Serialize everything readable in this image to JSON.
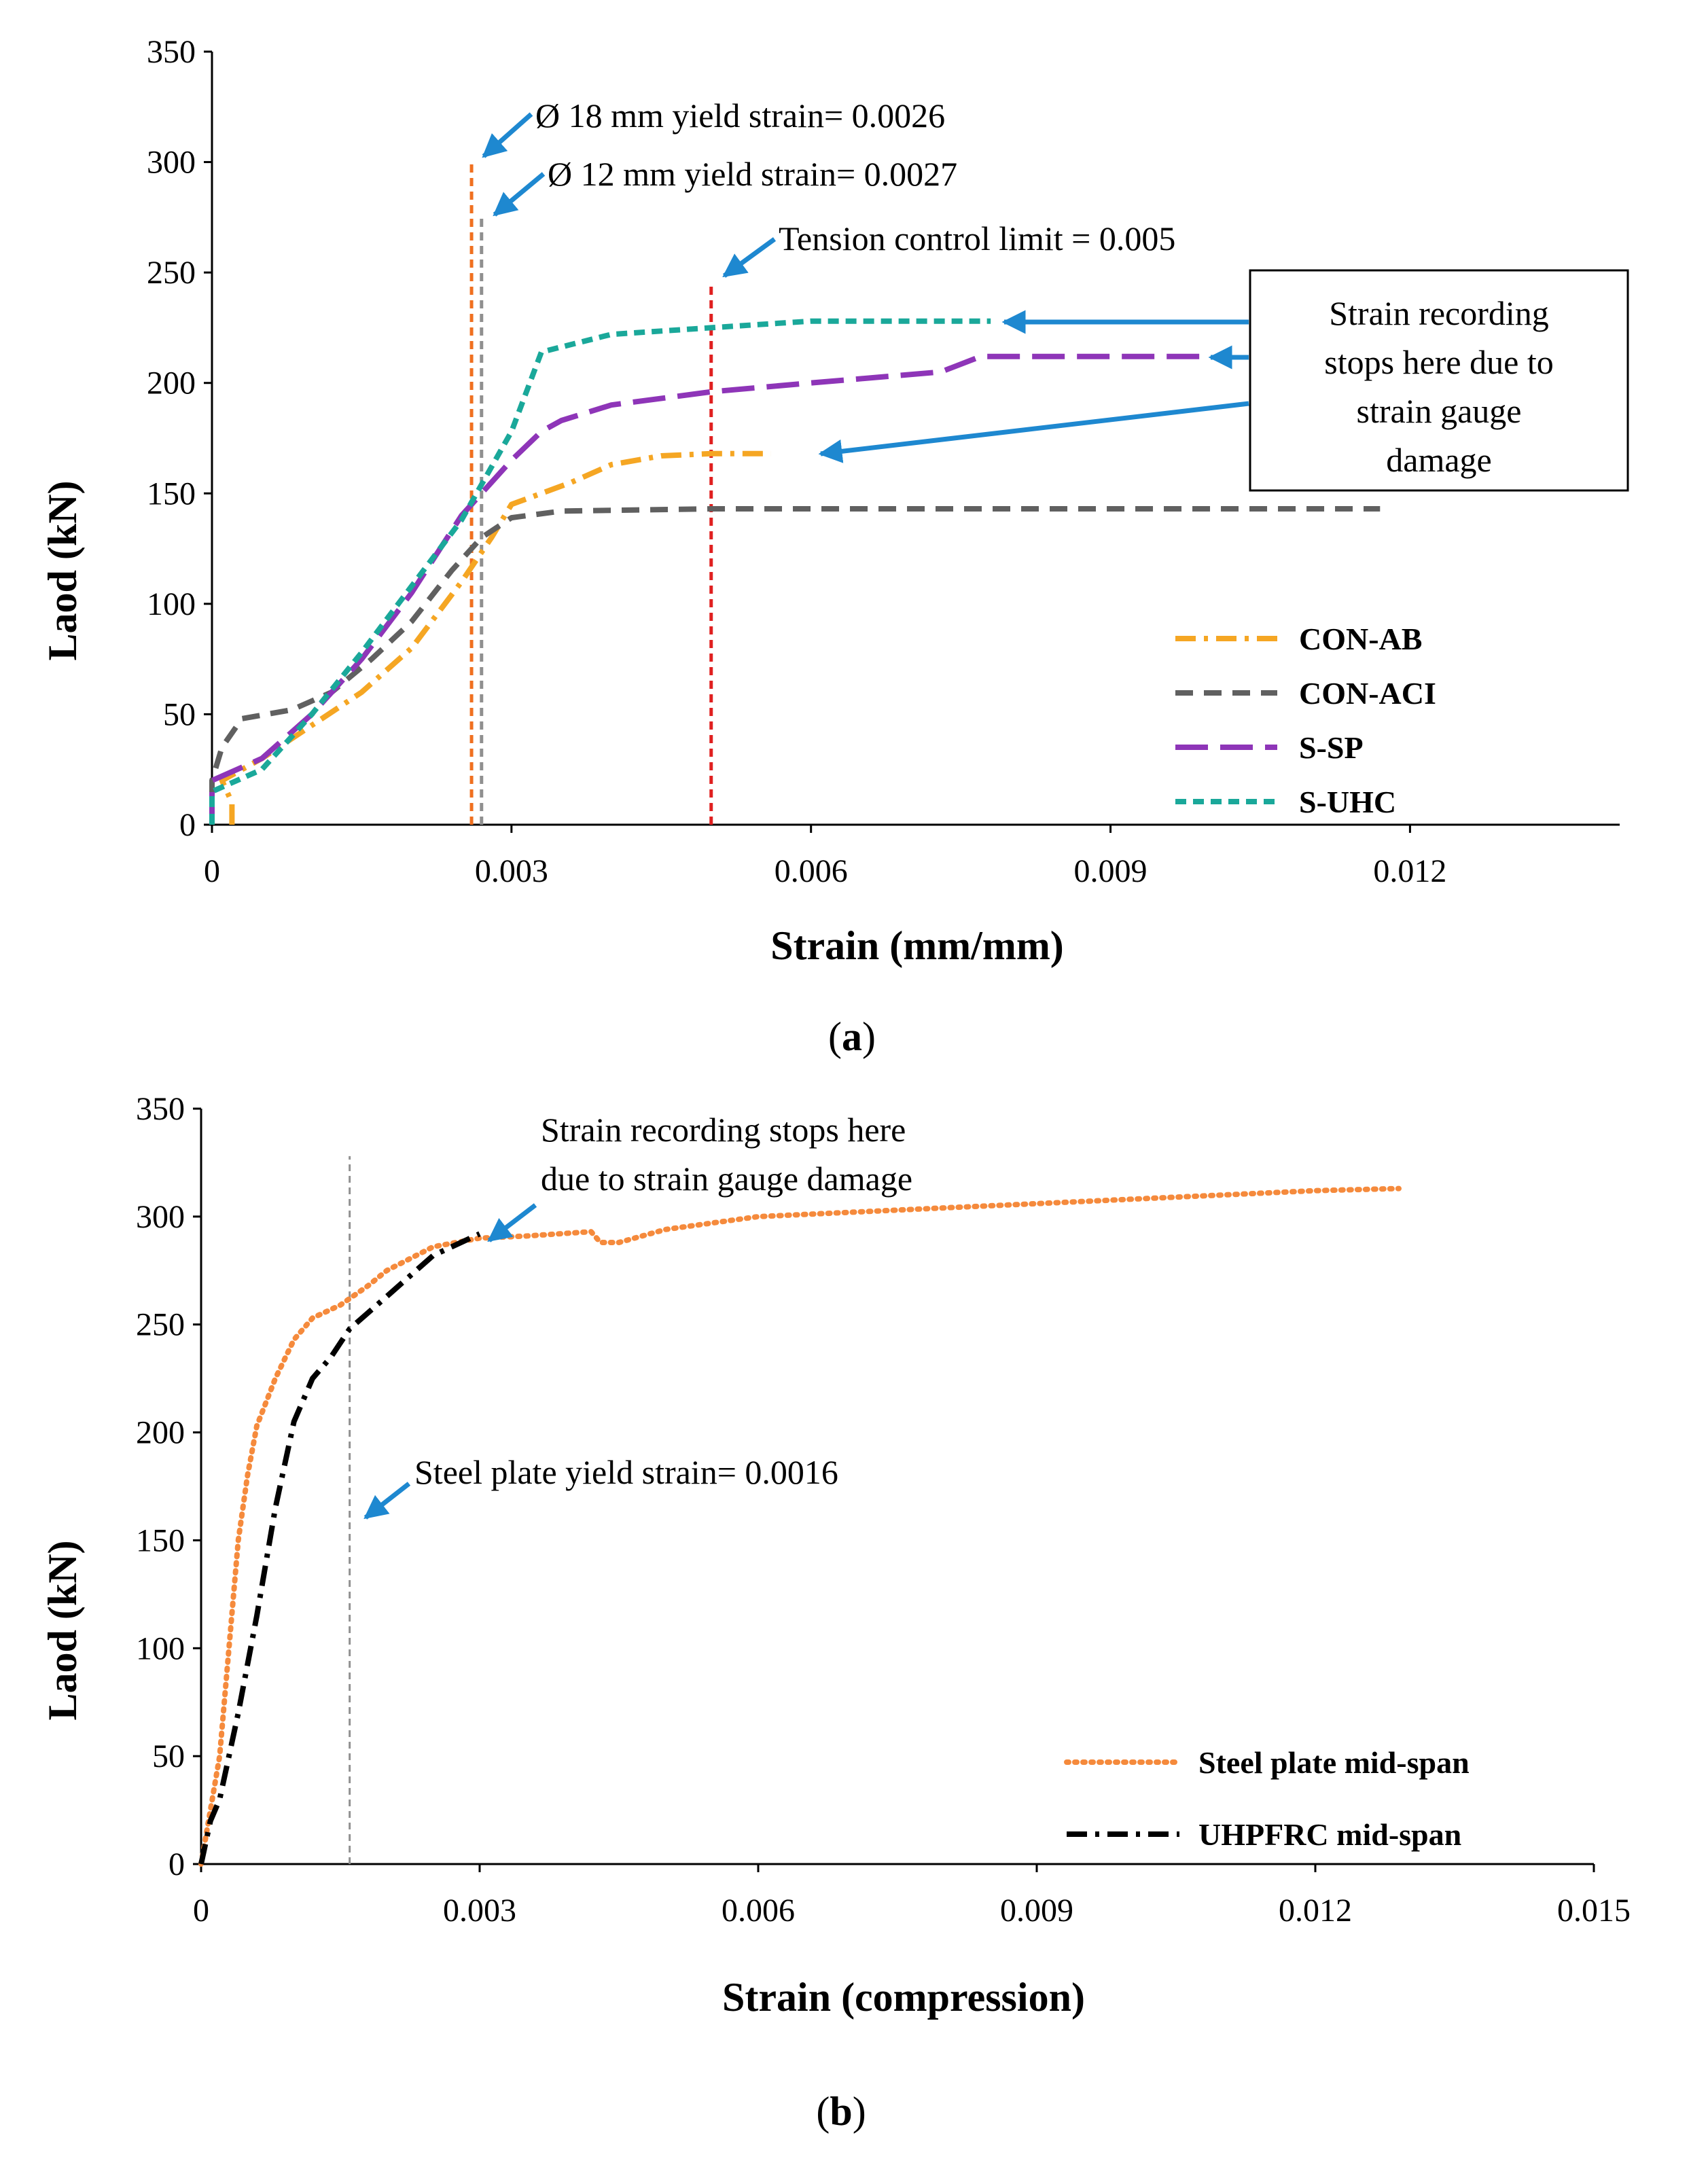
{
  "chart_data": [
    {
      "type": "line",
      "caption_open": "(",
      "caption_letter": "a",
      "caption_close": ")",
      "xlabel": "Strain (mm/mm)",
      "ylabel": "Laod (kN)",
      "xlim": [
        0,
        0.0141
      ],
      "ylim": [
        0,
        350
      ],
      "xticks": [
        0,
        0.003,
        0.006,
        0.009,
        0.012
      ],
      "xtick_labels": [
        "0",
        "0.003",
        "0.006",
        "0.009",
        "0.012"
      ],
      "yticks": [
        0,
        50,
        100,
        150,
        200,
        250,
        300,
        350
      ],
      "ytick_labels": [
        "0",
        "50",
        "100",
        "150",
        "200",
        "250",
        "300",
        "350"
      ],
      "series": [
        {
          "name": "CON-AB",
          "color": "#F5A623",
          "dash": "dashdot",
          "points": [
            [
              0.0002,
              0
            ],
            [
              0.0002,
              10
            ],
            [
              0.0001,
              20
            ],
            [
              0.0005,
              30
            ],
            [
              0.001,
              45
            ],
            [
              0.0015,
              60
            ],
            [
              0.002,
              80
            ],
            [
              0.0025,
              110
            ],
            [
              0.0028,
              130
            ],
            [
              0.003,
              145
            ],
            [
              0.0033,
              150
            ],
            [
              0.0036,
              155
            ],
            [
              0.004,
              163
            ],
            [
              0.0045,
              167
            ],
            [
              0.005,
              168
            ],
            [
              0.0056,
              168
            ]
          ]
        },
        {
          "name": "CON-ACI",
          "color": "#606060",
          "dash": "dash",
          "points": [
            [
              0,
              0
            ],
            [
              0,
              20
            ],
            [
              0.0001,
              35
            ],
            [
              0.0003,
              48
            ],
            [
              0.0008,
              52
            ],
            [
              0.0012,
              60
            ],
            [
              0.0016,
              75
            ],
            [
              0.002,
              92
            ],
            [
              0.0024,
              115
            ],
            [
              0.0027,
              130
            ],
            [
              0.003,
              139
            ],
            [
              0.0035,
              142
            ],
            [
              0.005,
              143
            ],
            [
              0.007,
              143
            ],
            [
              0.009,
              143
            ],
            [
              0.0117,
              143
            ]
          ]
        },
        {
          "name": "S-SP",
          "color": "#8E35B8",
          "dash": "longdash",
          "points": [
            [
              0,
              0
            ],
            [
              0,
              20
            ],
            [
              0.0005,
              30
            ],
            [
              0.001,
              50
            ],
            [
              0.0015,
              75
            ],
            [
              0.002,
              105
            ],
            [
              0.0025,
              140
            ],
            [
              0.003,
              165
            ],
            [
              0.0033,
              178
            ],
            [
              0.0035,
              183
            ],
            [
              0.004,
              190
            ],
            [
              0.005,
              196
            ],
            [
              0.006,
              200
            ],
            [
              0.0073,
              205
            ],
            [
              0.0077,
              212
            ],
            [
              0.0085,
              212
            ],
            [
              0.0099,
              212
            ]
          ]
        },
        {
          "name": "S-UHC",
          "color": "#1AA89A",
          "dash": "shortdash",
          "points": [
            [
              0,
              0
            ],
            [
              0,
              15
            ],
            [
              0.0005,
              25
            ],
            [
              0.001,
              50
            ],
            [
              0.0015,
              78
            ],
            [
              0.002,
              108
            ],
            [
              0.0025,
              138
            ],
            [
              0.003,
              178
            ],
            [
              0.0033,
              214
            ],
            [
              0.004,
              222
            ],
            [
              0.005,
              225
            ],
            [
              0.006,
              228
            ],
            [
              0.007,
              228
            ],
            [
              0.0078,
              228
            ]
          ]
        }
      ],
      "vlines": [
        {
          "x": 0.0026,
          "top": 300,
          "color": "#F07020"
        },
        {
          "x": 0.0027,
          "top": 275,
          "color": "#909090"
        },
        {
          "x": 0.005,
          "top": 246,
          "color": "#E02020"
        }
      ],
      "annotations": {
        "yield18": "Ø 18 mm yield strain= 0.0026",
        "yield12": "Ø 12 mm yield strain= 0.0027",
        "tension": "Tension control limit  = 0.005",
        "box_lines": [
          "Strain recording",
          "stops here due to",
          "strain gauge",
          "damage"
        ]
      },
      "arrow_color": "#1E88D0"
    },
    {
      "type": "line",
      "caption_open": "(",
      "caption_letter": "b",
      "caption_close": ")",
      "xlabel": "Strain (compression)",
      "ylabel": "Laod (kN)",
      "xlim": [
        0,
        0.015
      ],
      "ylim": [
        0,
        350
      ],
      "xticks": [
        0,
        0.003,
        0.006,
        0.009,
        0.012,
        0.015
      ],
      "xtick_labels": [
        "0",
        "0.003",
        "0.006",
        "0.009",
        "0.012",
        "0.015"
      ],
      "yticks": [
        0,
        50,
        100,
        150,
        200,
        250,
        300,
        350
      ],
      "ytick_labels": [
        "0",
        "50",
        "100",
        "150",
        "200",
        "250",
        "300",
        "350"
      ],
      "series": [
        {
          "name": "Steel plate mid-span",
          "color": "#F58A3C",
          "dash": "dot",
          "points": [
            [
              0,
              0
            ],
            [
              0.0001,
              25
            ],
            [
              0.0002,
              50
            ],
            [
              0.0003,
              100
            ],
            [
              0.0004,
              150
            ],
            [
              0.0005,
              180
            ],
            [
              0.0006,
              203
            ],
            [
              0.0008,
              225
            ],
            [
              0.001,
              243
            ],
            [
              0.0012,
              253
            ],
            [
              0.0015,
              259
            ],
            [
              0.0018,
              268
            ],
            [
              0.002,
              275
            ],
            [
              0.0025,
              286
            ],
            [
              0.003,
              290
            ],
            [
              0.0035,
              291
            ],
            [
              0.0042,
              293
            ],
            [
              0.0043,
              288
            ],
            [
              0.0045,
              288
            ],
            [
              0.005,
              294
            ],
            [
              0.006,
              300
            ],
            [
              0.007,
              302
            ],
            [
              0.008,
              304
            ],
            [
              0.009,
              306
            ],
            [
              0.01,
              308
            ],
            [
              0.011,
              310
            ],
            [
              0.012,
              312
            ],
            [
              0.0129,
              313
            ]
          ]
        },
        {
          "name": "UHPFRC mid-span",
          "color": "#000000",
          "dash": "dashdot",
          "points": [
            [
              0,
              0
            ],
            [
              0.0001,
              20
            ],
            [
              0.0002,
              30
            ],
            [
              0.0004,
              70
            ],
            [
              0.0006,
              115
            ],
            [
              0.0008,
              165
            ],
            [
              0.001,
              205
            ],
            [
              0.0012,
              225
            ],
            [
              0.0014,
              235
            ],
            [
              0.0016,
              248
            ],
            [
              0.002,
              263
            ],
            [
              0.0025,
              282
            ],
            [
              0.003,
              292
            ]
          ]
        }
      ],
      "vlines": [
        {
          "x": 0.0016,
          "top": 328,
          "color": "#909090"
        }
      ],
      "annotations": {
        "stop_lines": [
          "Strain recording stops here",
          "due to strain gauge damage"
        ],
        "yield_plate": "Steel plate yield  strain= 0.0016"
      },
      "arrow_color": "#1E88D0"
    }
  ]
}
